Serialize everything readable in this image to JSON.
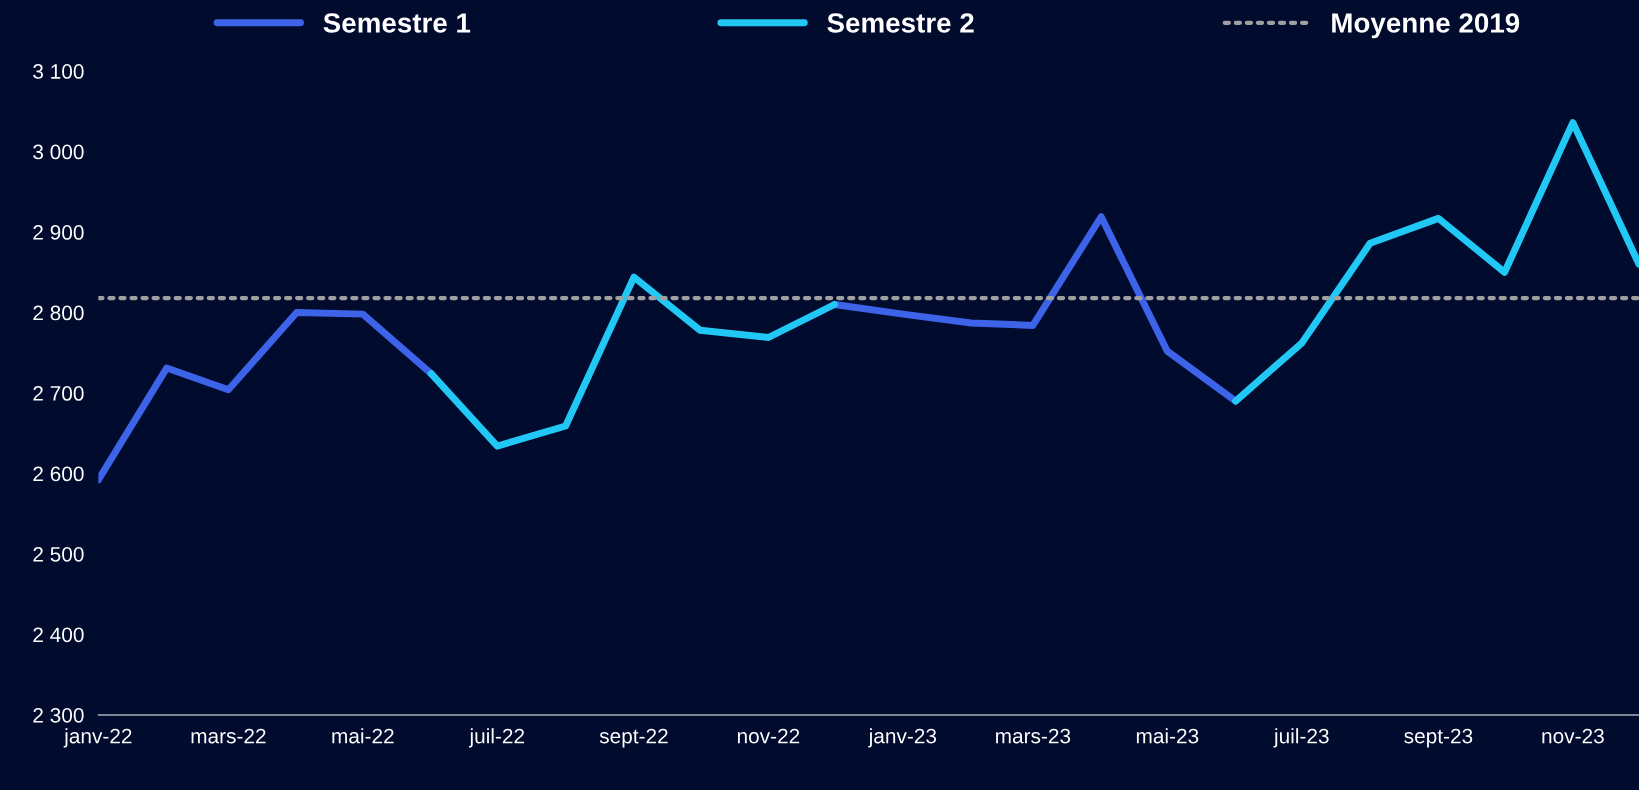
{
  "chart_data": {
    "type": "line",
    "x": [
      "2022-01",
      "2022-02",
      "2022-03",
      "2022-04",
      "2022-05",
      "2022-06",
      "2022-07",
      "2022-08",
      "2022-09",
      "2022-10",
      "2022-11",
      "2022-12",
      "2023-01",
      "2023-02",
      "2023-03",
      "2023-04",
      "2023-05",
      "2023-06",
      "2023-07",
      "2023-08",
      "2023-09",
      "2023-10",
      "2023-11",
      "2023-12"
    ],
    "series": [
      {
        "name": "Semestre 1",
        "color": "#3d63e8",
        "values": [
          2592,
          2731,
          2704,
          2800,
          2798,
          2724,
          null,
          null,
          null,
          null,
          null,
          2810,
          2798,
          2787,
          2784,
          2919,
          2752,
          2690,
          null,
          null,
          null,
          null,
          null,
          null
        ]
      },
      {
        "name": "Semestre 2",
        "color": "#22c8f5",
        "values": [
          null,
          null,
          null,
          null,
          null,
          2724,
          2634,
          2659,
          2844,
          2778,
          2769,
          2810,
          null,
          null,
          null,
          null,
          null,
          2690,
          2762,
          2886,
          2917,
          2850,
          3036,
          2860
        ]
      }
    ],
    "ref_lines": [
      {
        "axis": "y",
        "value": 2818,
        "label": "Moyenne 2019",
        "color": "#a0a0a0",
        "line_style": "dotted"
      }
    ],
    "xlim": [
      "2022-01",
      "2023-12"
    ],
    "xticks": [
      {
        "value": "2022-01",
        "label": "janv-22"
      },
      {
        "value": "2022-03",
        "label": "mars-22"
      },
      {
        "value": "2022-05",
        "label": "mai-22"
      },
      {
        "value": "2022-07",
        "label": "juil-22"
      },
      {
        "value": "2022-09",
        "label": "sept-22"
      },
      {
        "value": "2022-11",
        "label": "nov-22"
      },
      {
        "value": "2023-01",
        "label": "janv-23"
      },
      {
        "value": "2023-03",
        "label": "mars-23"
      },
      {
        "value": "2023-05",
        "label": "mai-23"
      },
      {
        "value": "2023-07",
        "label": "juil-23"
      },
      {
        "value": "2023-09",
        "label": "sept-23"
      },
      {
        "value": "2023-11",
        "label": "nov-23"
      }
    ],
    "ylim": [
      2300,
      3100
    ],
    "yticks": [
      {
        "value": 2300,
        "label": "2 300"
      },
      {
        "value": 2400,
        "label": "2 400"
      },
      {
        "value": 2500,
        "label": "2 500"
      },
      {
        "value": 2600,
        "label": "2 600"
      },
      {
        "value": 2700,
        "label": "2 700"
      },
      {
        "value": 2800,
        "label": "2 800"
      },
      {
        "value": 2900,
        "label": "2 900"
      },
      {
        "value": 3000,
        "label": "3 000"
      },
      {
        "value": 3100,
        "label": "3 100"
      }
    ],
    "grid": false,
    "legend": "top",
    "marker": "none",
    "line_style": "solid"
  }
}
